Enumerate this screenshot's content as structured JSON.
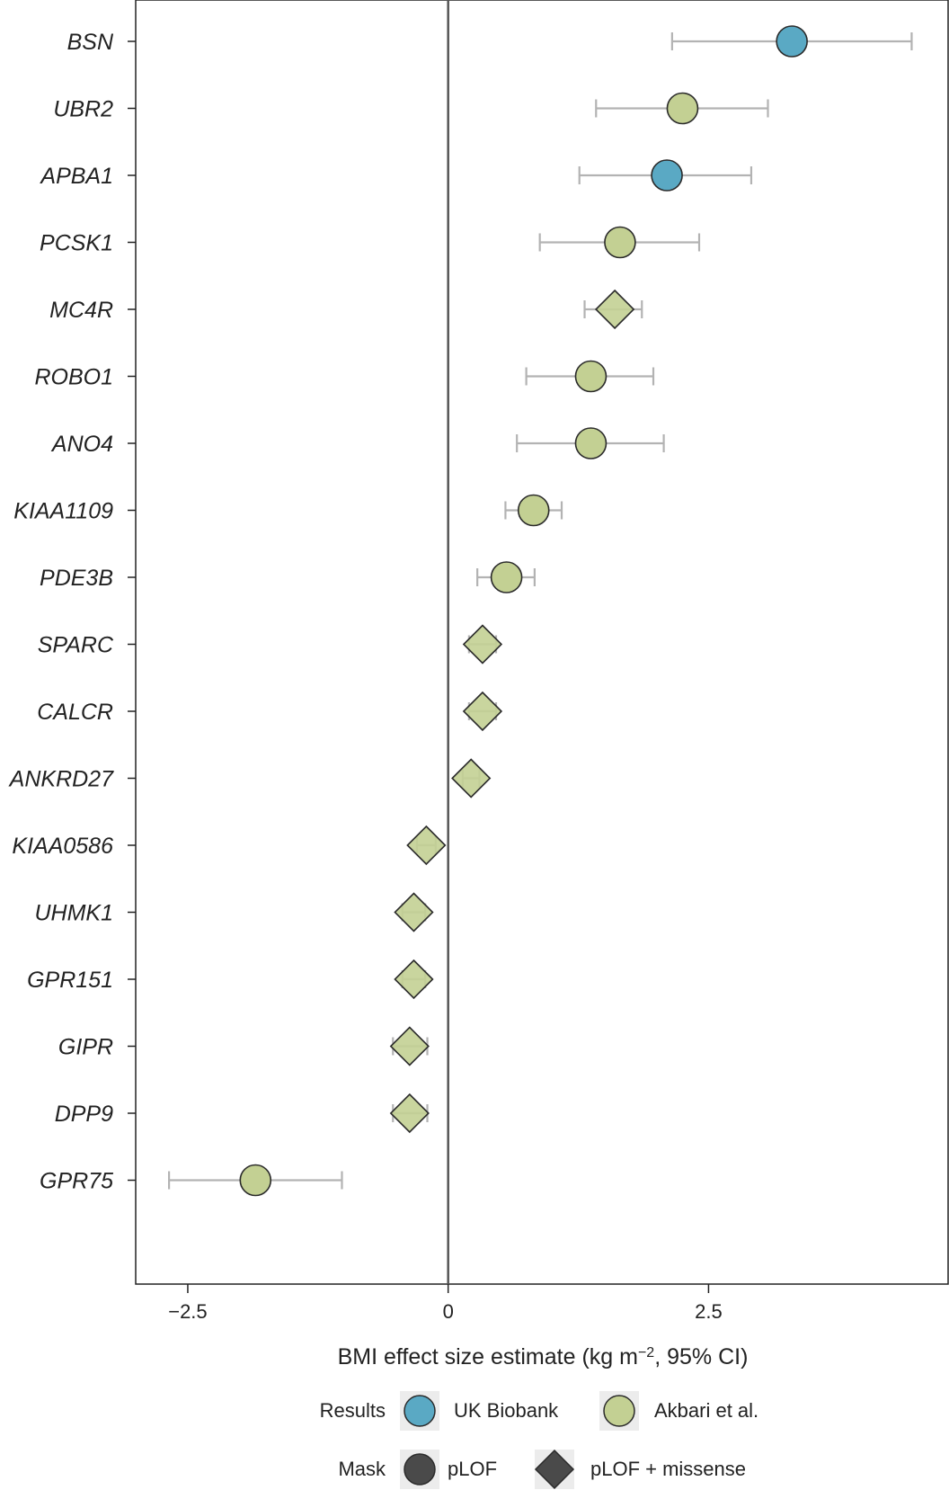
{
  "chart_data": {
    "type": "scatter",
    "subtype": "forest-plot",
    "xlabel_main": "BMI effect size estimate (kg m",
    "xlabel_sup": "−2",
    "xlabel_end": ", 95% CI)",
    "xlim": [
      -3.0,
      4.8
    ],
    "xticks": [
      -2.5,
      0,
      2.5
    ],
    "xtick_labels": [
      "−2.5",
      "0",
      "2.5"
    ],
    "reference_line_x": 0,
    "genes": [
      {
        "name": "BSN",
        "estimate": 3.3,
        "ci_low": 2.15,
        "ci_high": 4.45,
        "results": "UK Biobank",
        "mask": "pLOF"
      },
      {
        "name": "UBR2",
        "estimate": 2.25,
        "ci_low": 1.42,
        "ci_high": 3.07,
        "results": "Akbari et al.",
        "mask": "pLOF"
      },
      {
        "name": "APBA1",
        "estimate": 2.1,
        "ci_low": 1.26,
        "ci_high": 2.91,
        "results": "UK Biobank",
        "mask": "pLOF"
      },
      {
        "name": "PCSK1",
        "estimate": 1.65,
        "ci_low": 0.88,
        "ci_high": 2.41,
        "results": "Akbari et al.",
        "mask": "pLOF"
      },
      {
        "name": "MC4R",
        "estimate": 1.6,
        "ci_low": 1.31,
        "ci_high": 1.86,
        "results": "Akbari et al.",
        "mask": "pLOF + missense"
      },
      {
        "name": "ROBO1",
        "estimate": 1.37,
        "ci_low": 0.75,
        "ci_high": 1.97,
        "results": "Akbari et al.",
        "mask": "pLOF"
      },
      {
        "name": "ANO4",
        "estimate": 1.37,
        "ci_low": 0.66,
        "ci_high": 2.07,
        "results": "Akbari et al.",
        "mask": "pLOF"
      },
      {
        "name": "KIAA1109",
        "estimate": 0.82,
        "ci_low": 0.55,
        "ci_high": 1.09,
        "results": "Akbari et al.",
        "mask": "pLOF"
      },
      {
        "name": "PDE3B",
        "estimate": 0.56,
        "ci_low": 0.28,
        "ci_high": 0.83,
        "results": "Akbari et al.",
        "mask": "pLOF"
      },
      {
        "name": "SPARC",
        "estimate": 0.33,
        "ci_low": 0.2,
        "ci_high": 0.46,
        "results": "Akbari et al.",
        "mask": "pLOF + missense"
      },
      {
        "name": "CALCR",
        "estimate": 0.33,
        "ci_low": 0.2,
        "ci_high": 0.46,
        "results": "Akbari et al.",
        "mask": "pLOF + missense"
      },
      {
        "name": "ANKRD27",
        "estimate": 0.22,
        "ci_low": 0.14,
        "ci_high": 0.3,
        "results": "Akbari et al.",
        "mask": "pLOF + missense"
      },
      {
        "name": "KIAA0586",
        "estimate": -0.21,
        "ci_low": -0.3,
        "ci_high": -0.12,
        "results": "Akbari et al.",
        "mask": "pLOF + missense"
      },
      {
        "name": "UHMK1",
        "estimate": -0.33,
        "ci_low": -0.44,
        "ci_high": -0.22,
        "results": "Akbari et al.",
        "mask": "pLOF + missense"
      },
      {
        "name": "GPR151",
        "estimate": -0.33,
        "ci_low": -0.44,
        "ci_high": -0.22,
        "results": "Akbari et al.",
        "mask": "pLOF + missense"
      },
      {
        "name": "GIPR",
        "estimate": -0.37,
        "ci_low": -0.53,
        "ci_high": -0.2,
        "results": "Akbari et al.",
        "mask": "pLOF + missense"
      },
      {
        "name": "DPP9",
        "estimate": -0.37,
        "ci_low": -0.53,
        "ci_high": -0.2,
        "results": "Akbari et al.",
        "mask": "pLOF + missense"
      },
      {
        "name": "GPR75",
        "estimate": -1.85,
        "ci_low": -2.68,
        "ci_high": -1.02,
        "results": "Akbari et al.",
        "mask": "pLOF"
      }
    ],
    "legend": {
      "results_title": "Results",
      "results_items": [
        {
          "label": "UK Biobank",
          "color": "#5aa9c4"
        },
        {
          "label": "Akbari et al.",
          "color": "#c3d093"
        }
      ],
      "mask_title": "Mask",
      "mask_items": [
        {
          "label": "pLOF",
          "shape": "circle"
        },
        {
          "label": "pLOF + missense",
          "shape": "diamond"
        }
      ],
      "placement": "bottom"
    },
    "colors": {
      "uk_biobank": "#5aa9c4",
      "akbari": "#c3d093",
      "errorbar": "#b3b3b3",
      "marker_edge": "#2b2b2b",
      "reference_line": "#555555",
      "legend_mask_fill": "#4a4a4a"
    },
    "grid": false
  }
}
